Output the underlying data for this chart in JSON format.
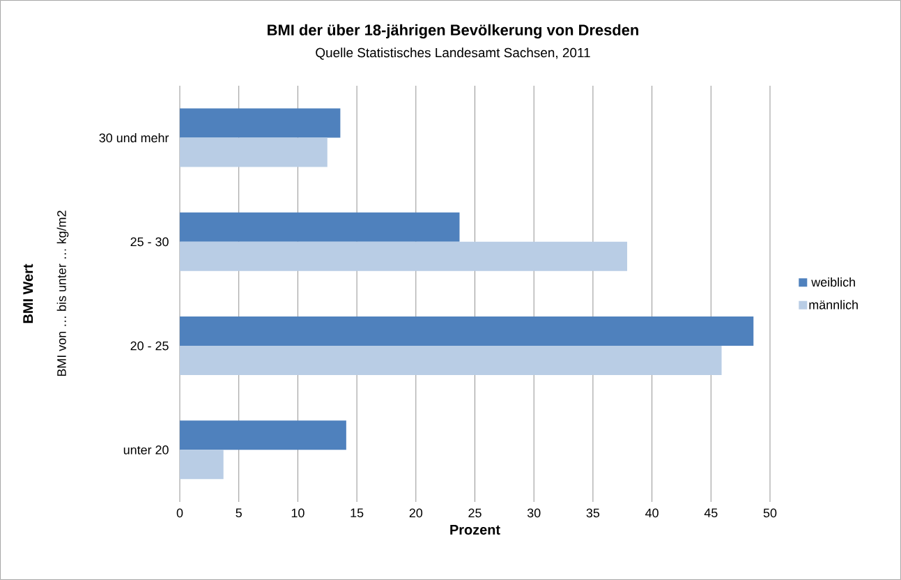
{
  "chart_data": {
    "type": "bar",
    "orientation": "horizontal",
    "title": "BMI der über 18-jährigen Bevölkerung von Dresden",
    "subtitle": "Quelle Statistisches Landesamt Sachsen, 2011",
    "xlabel": "Prozent",
    "ylabel": "BMI Wert",
    "annotations": [
      "BMI von … bis unter … kg/m2"
    ],
    "categories": [
      "30 und mehr",
      "25 - 30",
      "20 - 25",
      "unter 20"
    ],
    "series": [
      {
        "name": "weiblich",
        "color": "#4f81bd",
        "values": [
          13.6,
          23.7,
          48.6,
          14.1
        ]
      },
      {
        "name": "männlich",
        "color": "#b9cde5",
        "values": [
          12.5,
          37.9,
          45.9,
          3.7
        ]
      }
    ],
    "xlim": [
      0,
      50
    ],
    "xticks": [
      0,
      5,
      10,
      15,
      20,
      25,
      30,
      35,
      40,
      45,
      50
    ],
    "grid": "x",
    "legend": "right"
  }
}
